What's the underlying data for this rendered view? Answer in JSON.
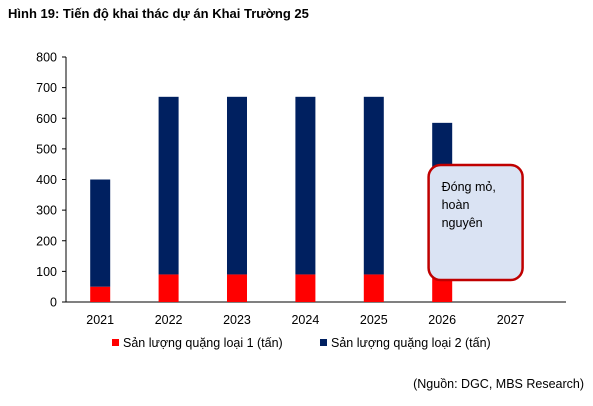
{
  "title": "Hình 19: Tiến độ khai thác dự án Khai Trường 25",
  "source": "(Nguồn: DGC, MBS Research)",
  "colors": {
    "series1": "#ff0000",
    "series2": "#002060",
    "annotation_border": "#c00000",
    "annotation_fill": "#dae3f3"
  },
  "chart_data": {
    "type": "bar",
    "stacked": true,
    "categories": [
      "2021",
      "2022",
      "2023",
      "2024",
      "2025",
      "2026",
      "2027"
    ],
    "series": [
      {
        "name": "Sản lượng quặng loại 1 (tấn)",
        "values": [
          50,
          90,
          90,
          90,
          90,
          85,
          null
        ]
      },
      {
        "name": "Sản lượng quặng loại 2 (tấn)",
        "values": [
          350,
          580,
          580,
          580,
          580,
          500,
          null
        ]
      }
    ],
    "ylim": [
      0,
      800
    ],
    "yticks": [
      0,
      100,
      200,
      300,
      400,
      500,
      600,
      700,
      800
    ],
    "grid": false,
    "legend": "bottom",
    "annotation": {
      "category": "2027",
      "text": [
        "Đóng mỏ,",
        "hoàn",
        "nguyên"
      ]
    }
  }
}
